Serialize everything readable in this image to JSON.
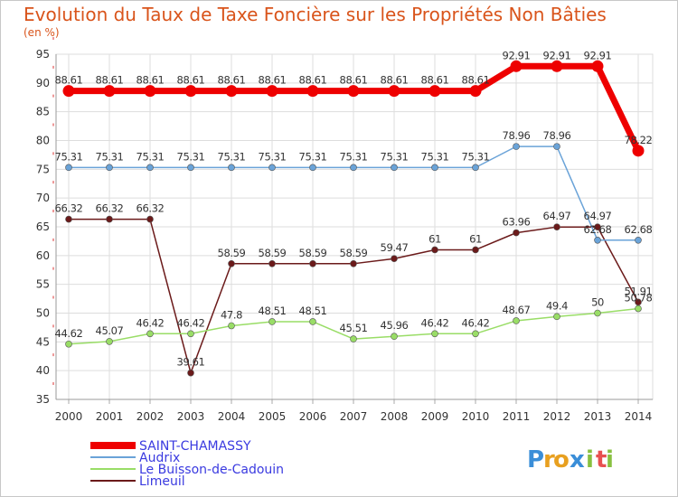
{
  "chart_data": {
    "type": "line",
    "title": "Evolution du Taux de Taxe Foncière sur les Propriétés Non Bâties",
    "subtitle": "(en %)",
    "xlabel": "",
    "ylabel": "",
    "ylim": [
      35,
      95
    ],
    "yticks": [
      35,
      40,
      45,
      50,
      55,
      60,
      65,
      70,
      75,
      80,
      85,
      90,
      95
    ],
    "categories": [
      "2000",
      "2001",
      "2002",
      "2003",
      "2004",
      "2005",
      "2006",
      "2007",
      "2008",
      "2009",
      "2010",
      "2011",
      "2012",
      "2013",
      "2014"
    ],
    "grid": true,
    "legend_position": "bottom-left",
    "series": [
      {
        "name": "Limeuil",
        "color": "#6b1a1a",
        "values": [
          66.32,
          66.32,
          66.32,
          39.61,
          58.59,
          58.59,
          58.59,
          58.59,
          59.47,
          61,
          61,
          63.96,
          64.97,
          64.97,
          51.91
        ],
        "labels": [
          "66.32",
          "66.32",
          "66.32",
          "39.61",
          "58.59",
          "58.59",
          "58.59",
          "58.59",
          "59.47",
          "61",
          "61",
          "63.96",
          "64.97",
          "64.97",
          "51.91"
        ]
      },
      {
        "name": "Le Buisson-de-Cadouin",
        "color": "#99dd66",
        "values": [
          44.62,
          45.07,
          46.42,
          46.42,
          47.8,
          48.51,
          48.51,
          45.51,
          45.96,
          46.42,
          46.42,
          48.67,
          49.4,
          50,
          50.78
        ],
        "labels": [
          "44.62",
          "45.07",
          "46.42",
          "46.42",
          "47.8",
          "48.51",
          "48.51",
          "45.51",
          "45.96",
          "46.42",
          "46.42",
          "48.67",
          "49.4",
          "50",
          "50.78"
        ]
      },
      {
        "name": "Audrix",
        "color": "#6aa3d8",
        "values": [
          75.31,
          75.31,
          75.31,
          75.31,
          75.31,
          75.31,
          75.31,
          75.31,
          75.31,
          75.31,
          75.31,
          78.96,
          78.96,
          62.68,
          62.68
        ],
        "labels": [
          "75.31",
          "75.31",
          "75.31",
          "75.31",
          "75.31",
          "75.31",
          "75.31",
          "75.31",
          "75.31",
          "75.31",
          "75.31",
          "78.96",
          "78.96",
          "62.68",
          "62.68"
        ]
      },
      {
        "name": "SAINT-CHAMASSY",
        "color": "#ee0000",
        "values": [
          88.61,
          88.61,
          88.61,
          88.61,
          88.61,
          88.61,
          88.61,
          88.61,
          88.61,
          88.61,
          88.61,
          92.91,
          92.91,
          92.91,
          78.22
        ],
        "labels": [
          "88.61",
          "88.61",
          "88.61",
          "88.61",
          "88.61",
          "88.61",
          "88.61",
          "88.61",
          "88.61",
          "88.61",
          "88.61",
          "92.91",
          "92.91",
          "92.91",
          "78.22"
        ]
      }
    ],
    "legend": [
      "SAINT-CHAMASSY",
      "Audrix",
      "Le Buisson-de-Cadouin",
      "Limeuil"
    ]
  },
  "logo": {
    "letters": [
      "P",
      "r",
      "o",
      "x",
      "i",
      "t",
      "i"
    ],
    "colors": [
      "#3a8ed8",
      "#e8a020",
      "#e8a020",
      "#3a8ed8",
      "#88c040",
      "#e85050",
      "#88c040"
    ]
  }
}
